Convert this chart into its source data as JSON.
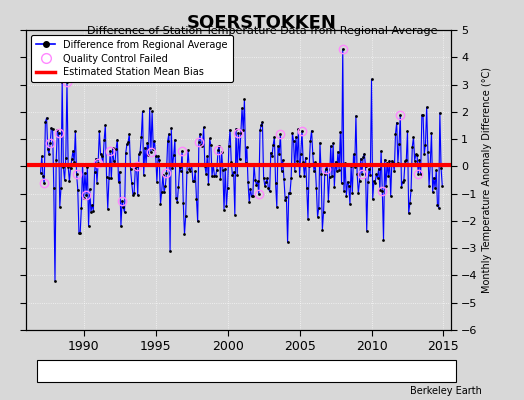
{
  "title": "SOERSTOKKEN",
  "subtitle": "Difference of Station Temperature Data from Regional Average",
  "ylabel": "Monthly Temperature Anomaly Difference (°C)",
  "xlim": [
    1986.0,
    2015.5
  ],
  "ylim": [
    -6,
    5
  ],
  "yticks": [
    -6,
    -5,
    -4,
    -3,
    -2,
    -1,
    0,
    1,
    2,
    3,
    4,
    5
  ],
  "xticks": [
    1990,
    1995,
    2000,
    2005,
    2010,
    2015
  ],
  "mean_bias": 0.05,
  "background_color": "#d8d8d8",
  "plot_bg_color": "#d8d8d8",
  "line_color": "#0000ff",
  "line_fill_color": "#aaaaff",
  "bias_color": "#ff0000",
  "marker_color": "#000000",
  "qc_color": "#ff88ff",
  "watermark": "Berkeley Earth",
  "seed": 12345,
  "years_start": 1987,
  "years_end": 2014
}
